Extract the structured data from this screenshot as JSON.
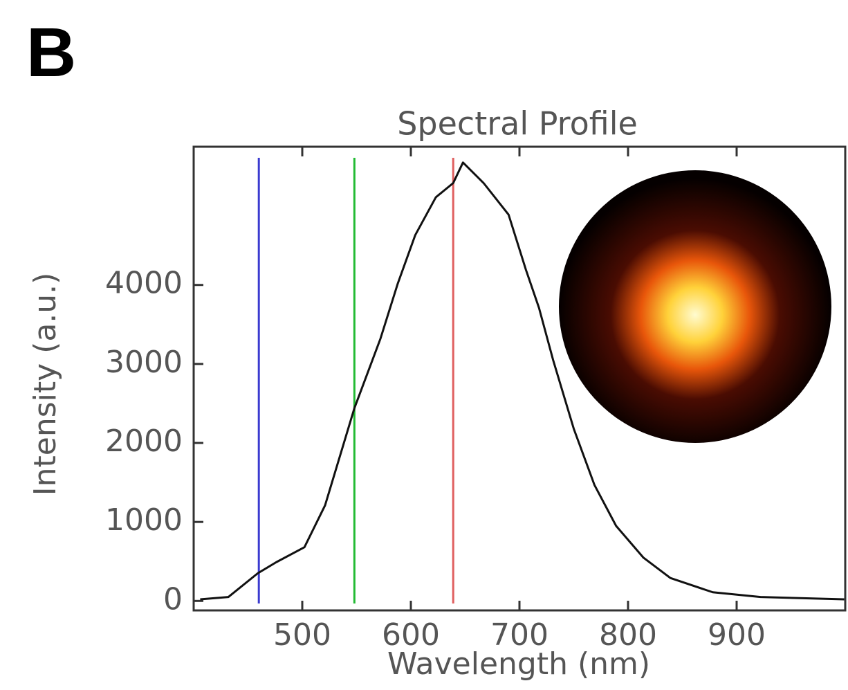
{
  "panel_label": "B",
  "chart_data": {
    "type": "line",
    "title": "Spectral Profile",
    "x_label": "Wavelength (nm)",
    "y_label": "Intensity (a.u.)",
    "x": [
      406,
      432,
      459,
      476,
      502,
      521,
      548,
      572,
      588,
      604,
      623,
      639,
      648,
      667,
      690,
      706,
      718,
      731,
      750,
      769,
      789,
      814,
      839,
      878,
      922,
      999
    ],
    "values": [
      20,
      50,
      350,
      490,
      680,
      1210,
      2440,
      3320,
      4020,
      4630,
      5110,
      5290,
      5550,
      5290,
      4890,
      4190,
      3710,
      3050,
      2180,
      1470,
      950,
      550,
      290,
      110,
      50,
      20
    ],
    "color": "#111111",
    "vlines": [
      460,
      548,
      639
    ],
    "vline_colors": [
      "#3b3bd0",
      "#22bb33",
      "#e06060"
    ],
    "xlim": [
      400,
      1000
    ],
    "xticks": [
      500,
      600,
      700,
      800,
      900
    ],
    "ylim": [
      -120,
      5750
    ],
    "yticks": [
      0,
      1000,
      2000,
      3000,
      4000
    ]
  }
}
